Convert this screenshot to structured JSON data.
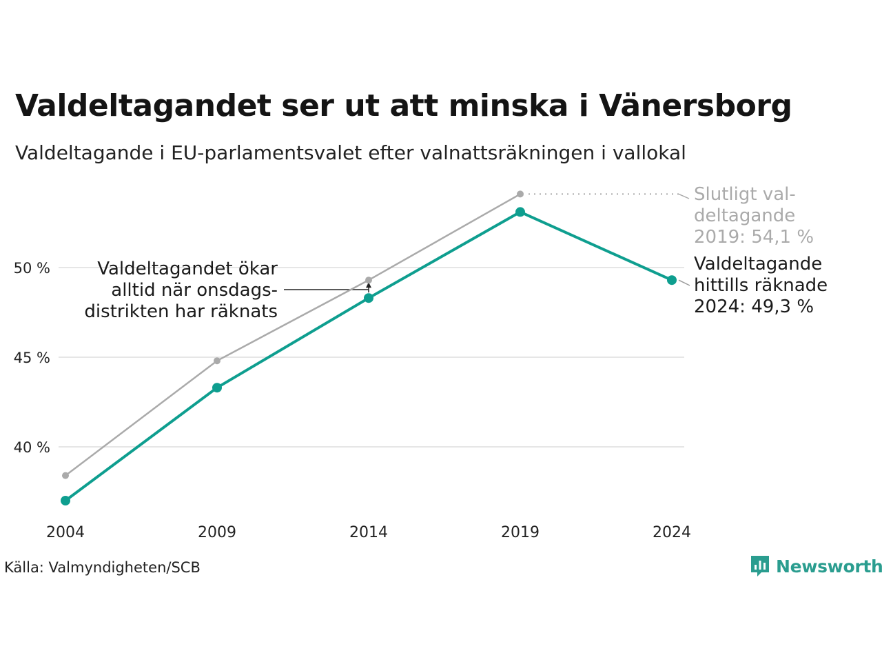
{
  "title": "Valdeltagandet ser ut att minska i Vänersborg",
  "subtitle": "Valdeltagande i EU-parlamentsvalet efter valnattsräkningen i vallokal",
  "source": "Källa: Valmyndigheten/SCB",
  "brand": "Newsworthy",
  "colors": {
    "primary": "#0e9e8f",
    "final": "#aaaaaa",
    "grid": "#e6e6e6",
    "annotation_final": "#aaaaaa",
    "brand": "#2a9d8f"
  },
  "chart_data": {
    "type": "line",
    "x": [
      "2004",
      "2009",
      "2014",
      "2019",
      "2024"
    ],
    "ylim": [
      35.2,
      54.6
    ],
    "yticks": [
      40,
      45,
      50
    ],
    "ytick_labels": [
      "40 %",
      "45 %",
      "50 %"
    ],
    "grid": "horizontal",
    "series": [
      {
        "values": [
          38.4,
          44.8,
          49.3,
          54.1,
          null
        ]
      },
      {
        "values": [
          37.0,
          43.3,
          48.3,
          53.1,
          49.3
        ]
      }
    ],
    "annotations": [
      {
        "lines": [
          "Slutligt val-",
          "deltagande",
          "2019: 54,1 %"
        ]
      },
      {
        "lines": [
          "Valdeltagande",
          "hittills räknade",
          "2024: 49,3 %"
        ]
      },
      {
        "lines": [
          "Valdeltagandet ökar",
          "alltid när onsdags-",
          "distrikten har räknats"
        ]
      }
    ]
  }
}
